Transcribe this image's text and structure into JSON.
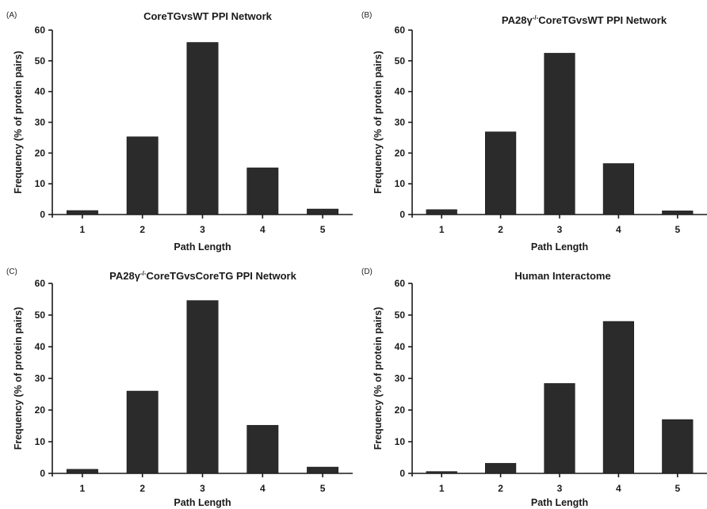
{
  "chart_data": [
    {
      "type": "bar",
      "panel": "(A)",
      "title": "CoreTGvsWT PPI Network",
      "title_sup": "",
      "title_rest": "",
      "xlabel": "Path Length",
      "ylabel": "Frequency (% of protein pairs)",
      "categories": [
        "1",
        "2",
        "3",
        "4",
        "5"
      ],
      "values": [
        1.3,
        25.3,
        56.0,
        15.2,
        1.8
      ],
      "ylim": [
        0,
        60
      ],
      "yticks": [
        0,
        10,
        20,
        30,
        40,
        50,
        60
      ],
      "bar_color": "#2b2b2b",
      "grid": false,
      "legend": "none"
    },
    {
      "type": "bar",
      "panel": "(B)",
      "title": "PA28γ",
      "title_sup": "-/-",
      "title_rest": "CoreTGvsWT PPI Network",
      "xlabel": "Path Length",
      "ylabel": "Frequency (% of protein pairs)",
      "categories": [
        "1",
        "2",
        "3",
        "4",
        "5"
      ],
      "values": [
        1.6,
        26.9,
        52.5,
        16.6,
        1.2
      ],
      "ylim": [
        0,
        60
      ],
      "yticks": [
        0,
        10,
        20,
        30,
        40,
        50,
        60
      ],
      "bar_color": "#2b2b2b",
      "grid": false,
      "legend": "none"
    },
    {
      "type": "bar",
      "panel": "(C)",
      "title": "PA28γ",
      "title_sup": "-/-",
      "title_rest": "CoreTGvsCoreTG PPI Network",
      "xlabel": "Path Length",
      "ylabel": "Frequency (% of protein pairs)",
      "categories": [
        "1",
        "2",
        "3",
        "4",
        "5"
      ],
      "values": [
        1.3,
        26.0,
        54.6,
        15.2,
        2.0
      ],
      "ylim": [
        0,
        60
      ],
      "yticks": [
        0,
        10,
        20,
        30,
        40,
        50,
        60
      ],
      "bar_color": "#2b2b2b",
      "grid": false,
      "legend": "none"
    },
    {
      "type": "bar",
      "panel": "(D)",
      "title": "Human Interactome",
      "title_sup": "",
      "title_rest": "",
      "xlabel": "Path Length",
      "ylabel": "Frequency (% of protein pairs)",
      "categories": [
        "1",
        "2",
        "3",
        "4",
        "5"
      ],
      "values": [
        0.6,
        3.2,
        28.4,
        48.0,
        17.0
      ],
      "ylim": [
        0,
        60
      ],
      "yticks": [
        0,
        10,
        20,
        30,
        40,
        50,
        60
      ],
      "bar_color": "#2b2b2b",
      "grid": false,
      "legend": "none"
    }
  ]
}
